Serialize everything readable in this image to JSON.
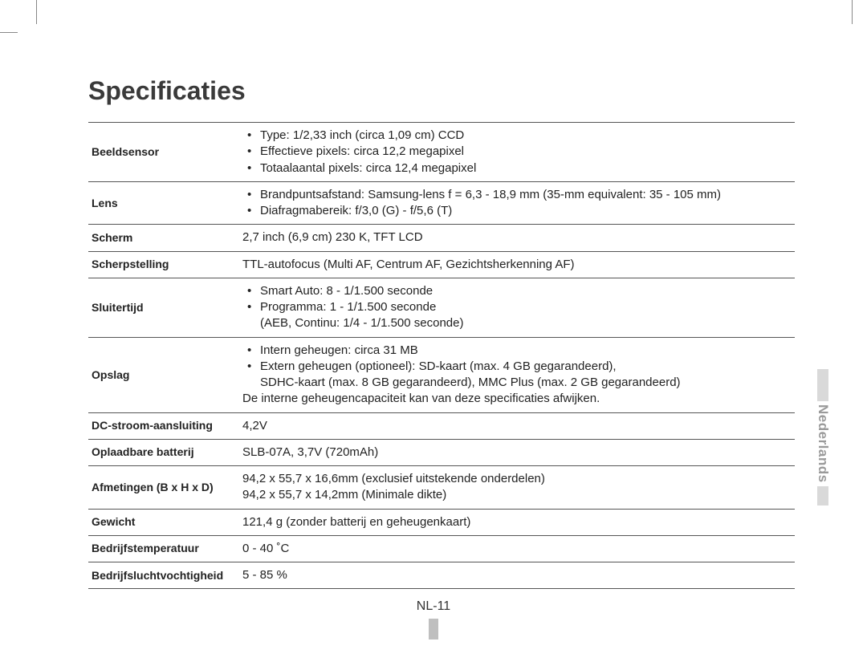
{
  "title": "Specificaties",
  "language_tab": "Nederlands",
  "page_number": "NL-11",
  "rows": [
    {
      "label": "Beeldsensor",
      "type": "bullets",
      "items": [
        "Type: 1/2,33 inch (circa 1,09 cm) CCD",
        "Effectieve pixels: circa 12,2 megapixel",
        "Totaalaantal pixels: circa 12,4 megapixel"
      ]
    },
    {
      "label": "Lens",
      "type": "bullets",
      "items": [
        "Brandpuntsafstand: Samsung-lens f = 6,3 - 18,9 mm (35-mm equivalent: 35 - 105 mm)",
        "Diafragmabereik: f/3,0 (G) - f/5,6 (T)"
      ]
    },
    {
      "label": "Scherm",
      "type": "text",
      "text": "2,7 inch (6,9 cm) 230 K, TFT LCD"
    },
    {
      "label": "Scherpstelling",
      "type": "text",
      "text": "TTL-autofocus (Multi AF, Centrum AF, Gezichtsherkenning AF)"
    },
    {
      "label": "Sluitertijd",
      "type": "bullets",
      "items": [
        "Smart Auto: 8 - 1/1.500 seconde",
        "Programma: 1 - 1/1.500 seconde\n(AEB, Continu: 1/4 - 1/1.500 seconde)"
      ]
    },
    {
      "label": "Opslag",
      "type": "bullets_note",
      "items": [
        "Intern geheugen: circa 31 MB",
        "Extern geheugen (optioneel): SD-kaart (max. 4 GB gegarandeerd),\nSDHC-kaart (max. 8 GB gegarandeerd), MMC Plus (max. 2 GB gegarandeerd)"
      ],
      "note": "De interne geheugencapaciteit kan van deze specificaties afwijken."
    },
    {
      "label": "DC-stroom-aansluiting",
      "type": "text",
      "text": "4,2V"
    },
    {
      "label": "Oplaadbare batterij",
      "type": "text",
      "text": "SLB-07A, 3,7V (720mAh)"
    },
    {
      "label": "Afmetingen (B x H x D)",
      "type": "multiline",
      "lines": [
        "94,2 x 55,7 x 16,6mm (exclusief uitstekende onderdelen)",
        "94,2 x 55,7 x 14,2mm (Minimale dikte)"
      ]
    },
    {
      "label": "Gewicht",
      "type": "text",
      "text": "121,4 g (zonder batterij en geheugenkaart)"
    },
    {
      "label": "Bedrijfstemperatuur",
      "type": "text",
      "text": "0 - 40 ˚C"
    },
    {
      "label": "Bedrijfsluchtvochtigheid",
      "type": "text",
      "text": "5 - 85 %"
    }
  ]
}
